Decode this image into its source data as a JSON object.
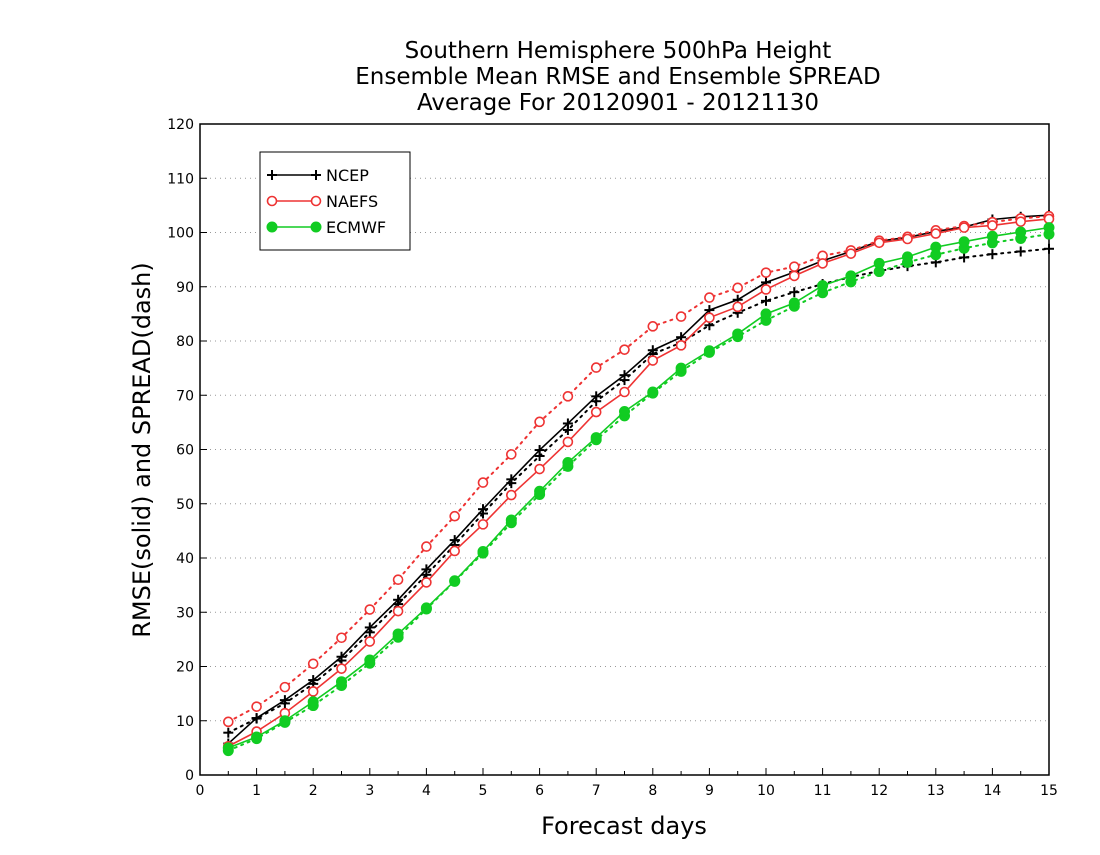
{
  "chart_data": {
    "type": "line",
    "title_lines": [
      "Southern Hemisphere 500hPa Height",
      "Ensemble Mean RMSE and Ensemble SPREAD",
      "Average For 20120901 - 20121130"
    ],
    "xlabel": "Forecast days",
    "ylabel": "RMSE(solid) and SPREAD(dash)",
    "xlim": [
      0,
      15
    ],
    "ylim": [
      0,
      120
    ],
    "xticks": [
      "0",
      "1",
      "2",
      "3",
      "4",
      "5",
      "6",
      "7",
      "8",
      "9",
      "10",
      "11",
      "12",
      "13",
      "14",
      "15"
    ],
    "yticks": [
      "0",
      "10",
      "20",
      "30",
      "40",
      "50",
      "60",
      "70",
      "80",
      "90",
      "100",
      "110",
      "120"
    ],
    "grid": "horizontal-dotted",
    "legend_position": "top-left",
    "x": [
      0.5,
      1,
      1.5,
      2,
      2.5,
      3,
      3.5,
      4,
      4.5,
      5,
      5.5,
      6,
      6.5,
      7,
      7.5,
      8,
      8.5,
      9,
      9.5,
      10,
      10.5,
      11,
      11.5,
      12,
      12.5,
      13,
      13.5,
      14,
      14.5,
      15
    ],
    "series": [
      {
        "name": "NCEP",
        "color": "#000000",
        "marker": "plus",
        "rmse": [
          5.8,
          10.5,
          13.8,
          17.5,
          21.8,
          27.2,
          32.3,
          37.9,
          43.3,
          49,
          54.5,
          59.9,
          64.8,
          69.8,
          73.7,
          78.3,
          80.7,
          85.7,
          87.6,
          90.8,
          92.7,
          94.8,
          96.5,
          98.4,
          99.1,
          100.2,
          101,
          102.4,
          102.9,
          103.2
        ],
        "spread": [
          7.8,
          10.4,
          13.2,
          16.8,
          21.1,
          26.3,
          31.5,
          36.9,
          42.4,
          48.2,
          53.8,
          58.8,
          63.6,
          68.9,
          72.8,
          77.6,
          79.7,
          82.9,
          85.2,
          87.4,
          89,
          90.5,
          91.8,
          92.9,
          93.8,
          94.5,
          95.4,
          96,
          96.5,
          97
        ]
      },
      {
        "name": "NAEFS",
        "color": "#ee3333",
        "marker": "open-circle",
        "rmse": [
          5.3,
          8,
          11.4,
          15.4,
          19.6,
          24.6,
          30.2,
          35.5,
          41.3,
          46.2,
          51.6,
          56.4,
          61.4,
          66.9,
          70.6,
          76.4,
          79.2,
          84.3,
          86.3,
          89.5,
          92,
          94.3,
          96.1,
          98.1,
          98.8,
          99.8,
          100.9,
          101.3,
          102,
          102.5
        ],
        "spread": [
          9.8,
          12.6,
          16.2,
          20.5,
          25.3,
          30.5,
          36,
          42.1,
          47.7,
          53.9,
          59.1,
          65.1,
          69.8,
          75.1,
          78.4,
          82.7,
          84.5,
          88,
          89.8,
          92.6,
          93.7,
          95.7,
          96.7,
          98.5,
          99.2,
          100.4,
          101.2,
          101.9,
          102.6,
          103
        ]
      },
      {
        "name": "ECMWF",
        "color": "#11cc22",
        "marker": "filled-circle",
        "rmse": [
          5,
          7,
          10,
          13.5,
          17.2,
          21.2,
          26,
          30.8,
          35.8,
          41.2,
          47,
          52.3,
          57.6,
          62.2,
          67,
          70.6,
          75,
          78.2,
          81.3,
          85,
          87,
          90.2,
          92,
          94.3,
          95.5,
          97.3,
          98.3,
          99.3,
          100.1,
          100.9
        ],
        "spread": [
          4.5,
          6.7,
          9.7,
          12.8,
          16.5,
          20.6,
          25.4,
          30.6,
          35.7,
          40.9,
          46.5,
          51.7,
          56.9,
          61.8,
          66.2,
          70.4,
          74.4,
          77.9,
          80.8,
          83.8,
          86.4,
          88.9,
          90.9,
          92.8,
          94.5,
          95.9,
          97.1,
          98.1,
          98.9,
          99.7
        ]
      }
    ]
  }
}
